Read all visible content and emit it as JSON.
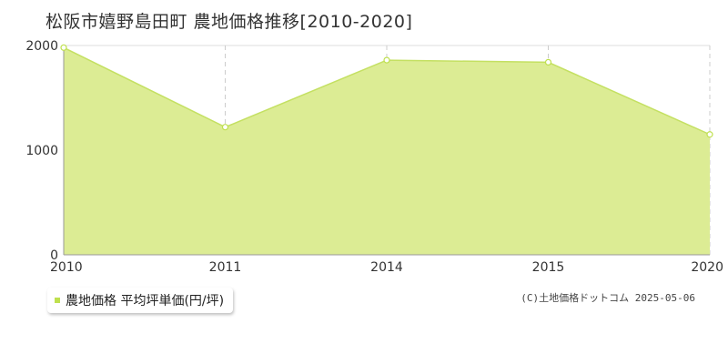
{
  "title": "松阪市嬉野島田町 農地価格推移[2010-2020]",
  "legend": {
    "label": "農地価格 平均坪単価(円/坪)"
  },
  "copyright": "(C)土地価格ドットコム 2025-05-06",
  "colors": {
    "fill": "#dcec94",
    "line": "#c4e062",
    "marker": "#bfe04e",
    "grid": "#cccccc",
    "axis": "#999999"
  },
  "chart_data": {
    "type": "area",
    "title": "松阪市嬉野島田町 農地価格推移[2010-2020]",
    "xlabel": "",
    "ylabel": "",
    "categories": [
      "2010",
      "2011",
      "2014",
      "2015",
      "2020"
    ],
    "series": [
      {
        "name": "農地価格 平均坪単価(円/坪)",
        "values": [
          1980,
          1220,
          1860,
          1840,
          1150
        ]
      }
    ],
    "ylim": [
      0,
      2000
    ],
    "yticks": [
      0,
      1000,
      2000
    ],
    "grid": true,
    "legend_position": "bottom-left"
  }
}
